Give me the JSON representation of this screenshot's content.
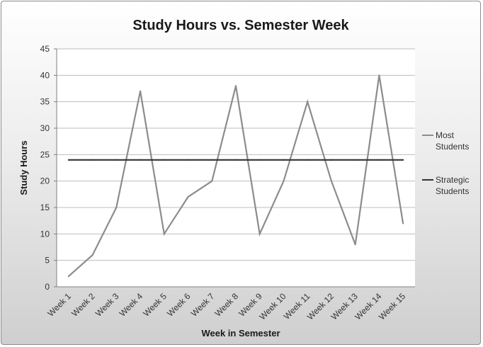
{
  "chart_data": {
    "type": "line",
    "title": "Study Hours vs. Semester Week",
    "xlabel": "Week in Semester",
    "ylabel": "Study Hours",
    "ylim": [
      0,
      45
    ],
    "ytick_step": 5,
    "grid": "horizontal",
    "legend_position": "right",
    "categories": [
      "Week 1",
      "Week 2",
      "Week 3",
      "Week 4",
      "Week 5",
      "Week 6",
      "Week 7",
      "Week 8",
      "Week 9",
      "Week 10",
      "Week 11",
      "Week 12",
      "Week 13",
      "Week 14",
      "Week 15"
    ],
    "series": [
      {
        "name_lines": [
          "Most",
          "Students"
        ],
        "color": "#8c8c8c",
        "values": [
          2,
          6,
          15,
          37,
          10,
          17,
          20,
          38,
          10,
          20,
          35,
          20,
          8,
          40,
          12
        ]
      },
      {
        "name_lines": [
          "Strategic",
          "Students"
        ],
        "color": "#333333",
        "values": [
          24,
          24,
          24,
          24,
          24,
          24,
          24,
          24,
          24,
          24,
          24,
          24,
          24,
          24,
          24
        ]
      }
    ]
  }
}
